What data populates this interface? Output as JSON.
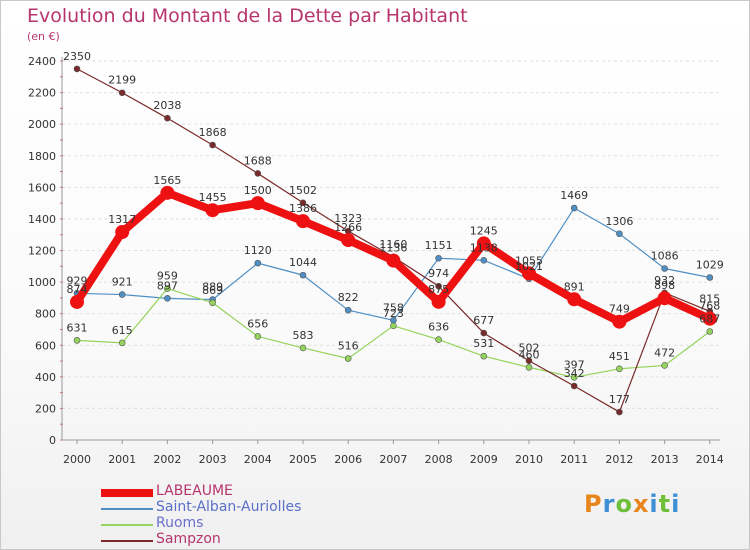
{
  "title": "Evolution du Montant de la Dette par Habitant",
  "unit_label": "(en €)",
  "logo": {
    "text": "Proxiti",
    "colors": [
      "#e8851c",
      "#3d8fd6",
      "#6fbf3a",
      "#e8851c",
      "#3d8fd6",
      "#6fbf3a",
      "#3d8fd6"
    ]
  },
  "chart_data": {
    "type": "line",
    "title": "Evolution du Montant de la Dette par Habitant",
    "ylabel": "(en €)",
    "xlabel": "",
    "x": [
      "2000",
      "2001",
      "2002",
      "2003",
      "2004",
      "2005",
      "2006",
      "2007",
      "2008",
      "2009",
      "2010",
      "2011",
      "2012",
      "2013",
      "2014"
    ],
    "ylim": [
      0,
      2400
    ],
    "yticks": [
      0,
      200,
      400,
      600,
      800,
      1000,
      1200,
      1400,
      1600,
      1800,
      2000,
      2200,
      2400
    ],
    "grid": "horizontal",
    "legend_position": "bottom-left",
    "series": [
      {
        "name": "LABEAUME",
        "color": "#ee1111",
        "values": [
          874,
          1317,
          1565,
          1455,
          1500,
          1386,
          1266,
          1136,
          875,
          1245,
          1055,
          891,
          749,
          898,
          768
        ],
        "labels": [
          "874",
          "1317",
          "1565",
          "1455",
          "1500",
          "1386",
          "1266",
          "1136",
          "875",
          "1245",
          "1055",
          "891",
          "749",
          "898",
          "768"
        ]
      },
      {
        "name": "Saint-Alban-Auriolles",
        "color": "#4f8fc4",
        "values": [
          929,
          921,
          897,
          889,
          1120,
          1044,
          822,
          758,
          1151,
          1138,
          1021,
          1469,
          1306,
          1086,
          1029
        ],
        "labels": [
          "929",
          "921",
          "897",
          "889",
          "1120",
          "1044",
          "822",
          "758",
          "1151",
          "1138",
          "1021",
          "1469",
          "1306",
          "1086",
          "1029"
        ]
      },
      {
        "name": "Ruoms",
        "color": "#94d45c",
        "values": [
          631,
          615,
          959,
          869,
          656,
          583,
          516,
          723,
          636,
          531,
          460,
          397,
          451,
          472,
          687
        ],
        "labels": [
          "631",
          "615",
          "959",
          "869",
          "656",
          "583",
          "516",
          "723",
          "636",
          "531",
          "460",
          "397",
          "451",
          "472",
          "687"
        ]
      },
      {
        "name": "Sampzon",
        "color": "#7a2a2a",
        "values": [
          2350,
          2199,
          2038,
          1868,
          1688,
          1502,
          1323,
          1160,
          974,
          677,
          502,
          342,
          177,
          932,
          815
        ],
        "labels": [
          "2350",
          "2199",
          "2038",
          "1868",
          "1688",
          "1502",
          "1323",
          "1160",
          "974",
          "677",
          "502",
          "342",
          "177",
          "932",
          "815"
        ]
      }
    ]
  }
}
